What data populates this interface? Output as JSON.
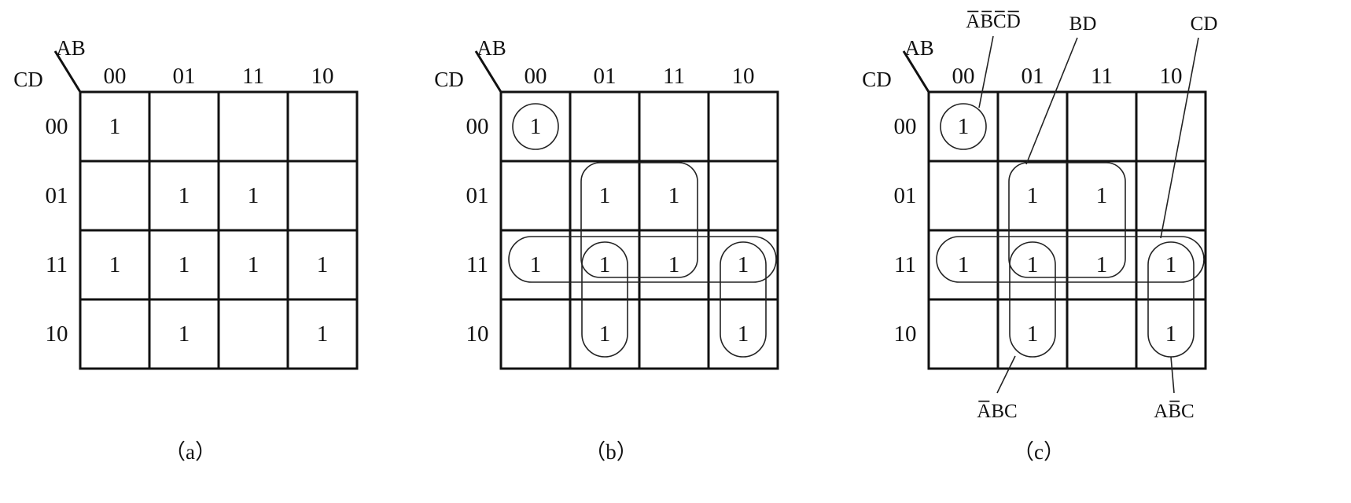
{
  "column_headers": [
    "00",
    "01",
    "11",
    "10"
  ],
  "row_headers": [
    "00",
    "01",
    "11",
    "10"
  ],
  "corner_labels": {
    "top": "AB",
    "left": "CD"
  },
  "cell_value": "1",
  "maps": [
    {
      "id": "a",
      "caption": "（a）",
      "ones": [
        [
          1,
          0,
          0,
          0
        ],
        [
          0,
          1,
          1,
          0
        ],
        [
          1,
          1,
          1,
          1
        ],
        [
          0,
          1,
          0,
          1
        ]
      ]
    },
    {
      "id": "b",
      "caption": "（b）",
      "ones": [
        [
          1,
          0,
          0,
          0
        ],
        [
          0,
          1,
          1,
          0
        ],
        [
          1,
          1,
          1,
          1
        ],
        [
          0,
          1,
          0,
          1
        ]
      ],
      "groups": [
        {
          "name": "single-0000",
          "rows": [
            0
          ],
          "cols": [
            0
          ]
        },
        {
          "name": "BD",
          "rows": [
            1,
            2
          ],
          "cols": [
            1,
            2
          ]
        },
        {
          "name": "CD",
          "rows": [
            2
          ],
          "cols": [
            0,
            1,
            2,
            3
          ]
        },
        {
          "name": "A'BC",
          "rows": [
            2,
            3
          ],
          "cols": [
            1
          ]
        },
        {
          "name": "AB'C",
          "rows": [
            2,
            3
          ],
          "cols": [
            3
          ]
        }
      ]
    },
    {
      "id": "c",
      "caption": "（c）",
      "ones": [
        [
          1,
          0,
          0,
          0
        ],
        [
          0,
          1,
          1,
          0
        ],
        [
          1,
          1,
          1,
          1
        ],
        [
          0,
          1,
          0,
          1
        ]
      ],
      "groups": [
        {
          "name": "single-0000",
          "rows": [
            0
          ],
          "cols": [
            0
          ]
        },
        {
          "name": "BD",
          "rows": [
            1,
            2
          ],
          "cols": [
            1,
            2
          ]
        },
        {
          "name": "CD",
          "rows": [
            2
          ],
          "cols": [
            0,
            1,
            2,
            3
          ]
        },
        {
          "name": "A'BC",
          "rows": [
            2,
            3
          ],
          "cols": [
            1
          ]
        },
        {
          "name": "AB'C",
          "rows": [
            2,
            3
          ],
          "cols": [
            3
          ]
        }
      ],
      "term_labels": [
        {
          "group": "single-0000",
          "letters": [
            "A",
            "B",
            "C",
            "D"
          ],
          "overbar": [
            true,
            true,
            true,
            true
          ]
        },
        {
          "group": "BD",
          "letters": [
            "B",
            "D"
          ],
          "overbar": [
            false,
            false
          ]
        },
        {
          "group": "CD",
          "letters": [
            "C",
            "D"
          ],
          "overbar": [
            false,
            false
          ]
        },
        {
          "group": "A'BC",
          "letters": [
            "A",
            "B",
            "C"
          ],
          "overbar": [
            true,
            false,
            false
          ]
        },
        {
          "group": "AB'C",
          "letters": [
            "A",
            "B",
            "C"
          ],
          "overbar": [
            false,
            true,
            false
          ]
        }
      ]
    }
  ]
}
